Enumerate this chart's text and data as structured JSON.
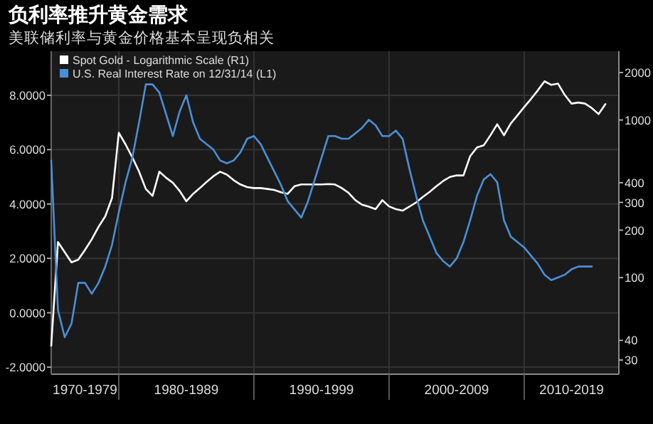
{
  "chart_data": {
    "type": "line",
    "title": "负利率推升黄金需求",
    "subtitle": "美联储利率与黄金价格基本呈现负相关",
    "categories": [
      null,
      null,
      null,
      null,
      null,
      "1970-1979",
      null,
      null,
      null,
      null,
      null,
      null,
      null,
      null,
      null,
      null,
      null,
      null,
      null,
      null,
      "1980-1989",
      null,
      null,
      null,
      null,
      null,
      null,
      null,
      null,
      null,
      null,
      null,
      null,
      null,
      null,
      null,
      null,
      null,
      null,
      null,
      "1990-1999",
      null,
      null,
      null,
      null,
      null,
      null,
      null,
      null,
      null,
      null,
      null,
      null,
      null,
      null,
      null,
      null,
      null,
      null,
      null,
      "2000-2009",
      null,
      null,
      null,
      null,
      null,
      null,
      null,
      null,
      null,
      null,
      null,
      null,
      null,
      null,
      null,
      null,
      "2010-2019",
      null,
      null,
      null,
      null,
      null,
      null,
      null
    ],
    "ylim": [
      -2.26,
      9.62
    ],
    "yticks": [
      {
        "value": 8,
        "label": "8.0000"
      },
      {
        "value": 6,
        "label": "6.0000"
      },
      {
        "value": 4,
        "label": "4.0000"
      },
      {
        "value": 2,
        "label": "2.0000"
      },
      {
        "value": 0,
        "label": "0.0000"
      },
      {
        "value": -2,
        "label": "-2.0000"
      }
    ],
    "y2lim": [
      24.4,
      2730
    ],
    "y2ticks": [
      2000,
      1000,
      400,
      300,
      200,
      100,
      40,
      30
    ],
    "log": "y2",
    "grid": true,
    "legend": "top left",
    "series": [
      {
        "name": "Spot Gold - Logarithmic Scale (R1)",
        "color": "#ffffff",
        "axis": "y2",
        "values": [
          37,
          168,
          145,
          125,
          130,
          150,
          175,
          210,
          245,
          320,
          830,
          700,
          580,
          470,
          365,
          330,
          470,
          430,
          400,
          355,
          305,
          340,
          370,
          405,
          440,
          470,
          450,
          415,
          390,
          375,
          370,
          370,
          365,
          360,
          348,
          340,
          380,
          390,
          390,
          390,
          390,
          392,
          390,
          370,
          345,
          310,
          290,
          282,
          272,
          310,
          283,
          272,
          266,
          282,
          300,
          325,
          350,
          380,
          410,
          435,
          445,
          445,
          590,
          670,
          690,
          800,
          940,
          800,
          950,
          1070,
          1210,
          1360,
          1540,
          1760,
          1670,
          1700,
          1440,
          1270,
          1290,
          1270,
          1190,
          1090,
          1260,
          null,
          null
        ]
      },
      {
        "name": "U.S. Real Interest Rate on 12/31/14 (L1)",
        "color": "#4a8fd6",
        "values": [
          5.6,
          0.1,
          -0.9,
          -0.4,
          1.1,
          1.1,
          0.7,
          1.1,
          1.7,
          2.5,
          3.7,
          4.8,
          5.7,
          7.0,
          8.4,
          8.4,
          8.1,
          7.3,
          6.5,
          7.4,
          8.0,
          7.0,
          6.4,
          6.2,
          6.0,
          5.6,
          5.5,
          5.6,
          5.9,
          6.4,
          6.5,
          6.2,
          5.7,
          5.2,
          4.7,
          4.1,
          3.8,
          3.5,
          4.1,
          4.9,
          5.7,
          6.5,
          6.5,
          6.4,
          6.4,
          6.6,
          6.8,
          7.1,
          6.9,
          6.5,
          6.5,
          6.7,
          6.4,
          5.3,
          4.3,
          3.4,
          2.8,
          2.2,
          1.9,
          1.7,
          2.0,
          2.6,
          3.4,
          4.3,
          4.9,
          5.1,
          4.8,
          3.4,
          2.8,
          2.6,
          2.4,
          2.1,
          1.8,
          1.4,
          1.2,
          1.3,
          1.4,
          1.6,
          1.7,
          1.7,
          1.7,
          null,
          null,
          null,
          null
        ]
      }
    ]
  }
}
